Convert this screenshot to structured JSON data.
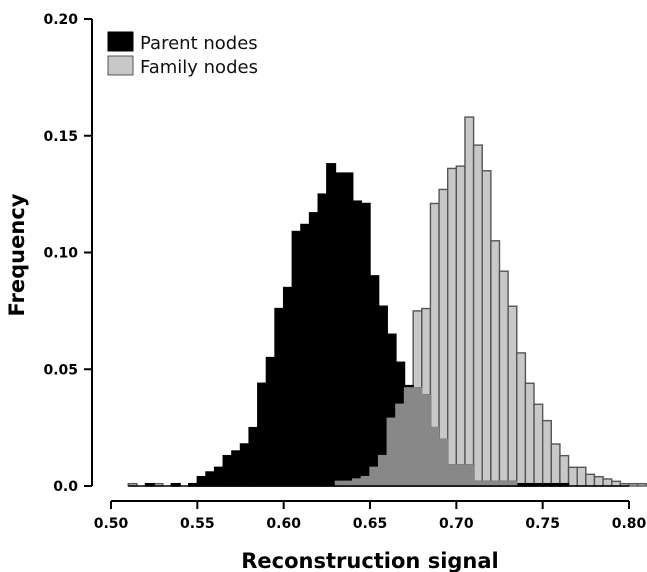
{
  "chart_data": {
    "type": "bar",
    "title": "",
    "xlabel": "Reconstruction signal",
    "ylabel": "Frequency",
    "xlim": [
      0.5,
      0.81
    ],
    "ylim": [
      0,
      0.2
    ],
    "xticks": [
      "0.50",
      "0.55",
      "0.60",
      "0.65",
      "0.70",
      "0.75",
      "0.80"
    ],
    "yticks": [
      "0.0",
      "0.05",
      "0.10",
      "0.15",
      "0.20"
    ],
    "xtick_values": [
      0.5,
      0.55,
      0.6,
      0.65,
      0.7,
      0.75,
      0.8
    ],
    "ytick_values": [
      0,
      0.05,
      0.1,
      0.15,
      0.2
    ],
    "bin_width": 0.005,
    "grid": false,
    "legend_position": "top-left",
    "colors": {
      "parent": "#000000",
      "family": "#c8c8c8",
      "overlap": "#888888",
      "edge": "#000000",
      "family_edge": "#555555"
    },
    "series": [
      {
        "name": "Parent nodes",
        "type": "histogram",
        "x": [
          0.52,
          0.535,
          0.545,
          0.55,
          0.555,
          0.56,
          0.565,
          0.57,
          0.575,
          0.58,
          0.585,
          0.59,
          0.595,
          0.6,
          0.605,
          0.61,
          0.615,
          0.62,
          0.625,
          0.63,
          0.635,
          0.64,
          0.645,
          0.65,
          0.655,
          0.66,
          0.665,
          0.67,
          0.675,
          0.68,
          0.685,
          0.69,
          0.695,
          0.7,
          0.705,
          0.71,
          0.715,
          0.72,
          0.725,
          0.73,
          0.735,
          0.74,
          0.745,
          0.75,
          0.755,
          0.76
        ],
        "values": [
          0.001,
          0.001,
          0.001,
          0.004,
          0.006,
          0.008,
          0.013,
          0.015,
          0.018,
          0.025,
          0.044,
          0.055,
          0.076,
          0.085,
          0.109,
          0.112,
          0.117,
          0.125,
          0.138,
          0.134,
          0.134,
          0.122,
          0.121,
          0.09,
          0.077,
          0.065,
          0.053,
          0.043,
          0.042,
          0.039,
          0.025,
          0.02,
          0.009,
          0.009,
          0.009,
          0.002,
          0.002,
          0.002,
          0.002,
          0.002,
          0.001,
          0.001,
          0.001,
          0.001,
          0.001,
          0.001
        ]
      },
      {
        "name": "Family nodes",
        "type": "histogram",
        "x": [
          0.51,
          0.525,
          0.535,
          0.545,
          0.55,
          0.555,
          0.56,
          0.565,
          0.57,
          0.575,
          0.58,
          0.585,
          0.59,
          0.595,
          0.6,
          0.605,
          0.61,
          0.615,
          0.62,
          0.625,
          0.63,
          0.635,
          0.64,
          0.645,
          0.65,
          0.655,
          0.66,
          0.665,
          0.67,
          0.675,
          0.68,
          0.685,
          0.69,
          0.695,
          0.7,
          0.705,
          0.71,
          0.715,
          0.72,
          0.725,
          0.73,
          0.735,
          0.74,
          0.745,
          0.75,
          0.755,
          0.76,
          0.765,
          0.77,
          0.775,
          0.78,
          0.785,
          0.79,
          0.795,
          0.8,
          0.805
        ],
        "values": [
          0.001,
          0.001,
          0.001,
          0.001,
          0.001,
          0.001,
          0.001,
          0.001,
          0.001,
          0.001,
          0.001,
          0.001,
          0.001,
          0.001,
          0.001,
          0.001,
          0.001,
          0.001,
          0.001,
          0.001,
          0.002,
          0.002,
          0.003,
          0.004,
          0.008,
          0.013,
          0.029,
          0.035,
          0.042,
          0.075,
          0.076,
          0.121,
          0.127,
          0.136,
          0.137,
          0.158,
          0.146,
          0.135,
          0.105,
          0.092,
          0.077,
          0.057,
          0.044,
          0.035,
          0.028,
          0.018,
          0.013,
          0.008,
          0.008,
          0.005,
          0.004,
          0.003,
          0.002,
          0.001,
          0.001,
          0.001
        ]
      }
    ]
  }
}
